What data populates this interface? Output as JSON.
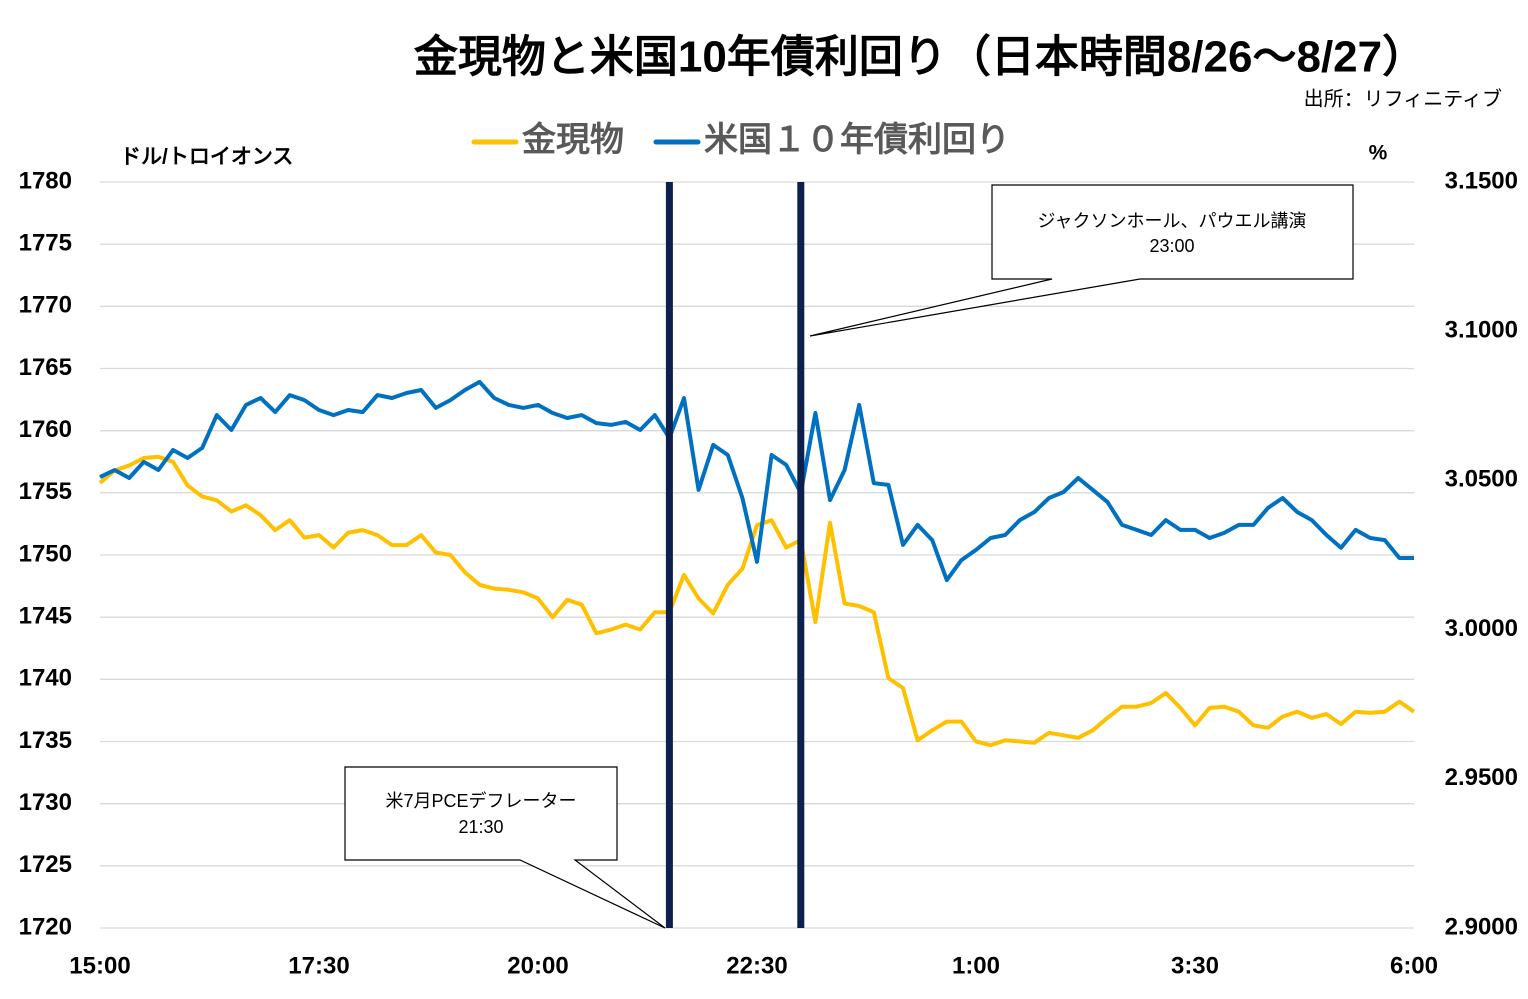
{
  "chart_data": {
    "type": "line",
    "title": "金現物と米国10年債利回り（日本時間8/26～8/27）",
    "source": "出所：リフィニティブ",
    "ylabel": "ドル/トロイオンス",
    "y2label": "%",
    "x": [
      "15:00",
      "15:10",
      "15:20",
      "15:30",
      "15:40",
      "15:50",
      "16:00",
      "16:10",
      "16:20",
      "16:30",
      "16:40",
      "16:50",
      "17:00",
      "17:10",
      "17:20",
      "17:30",
      "17:40",
      "17:50",
      "18:00",
      "18:10",
      "18:20",
      "18:30",
      "18:40",
      "18:50",
      "19:00",
      "19:10",
      "19:20",
      "19:30",
      "19:40",
      "19:50",
      "20:00",
      "20:10",
      "20:20",
      "20:30",
      "20:40",
      "20:50",
      "21:00",
      "21:10",
      "21:20",
      "21:30",
      "21:40",
      "21:50",
      "22:00",
      "22:10",
      "22:20",
      "22:30",
      "22:40",
      "22:50",
      "23:00",
      "23:10",
      "23:20",
      "23:30",
      "23:40",
      "23:50",
      "0:00",
      "0:10",
      "0:20",
      "0:30",
      "0:40",
      "0:50",
      "1:00",
      "1:10",
      "1:20",
      "1:30",
      "1:40",
      "1:50",
      "2:00",
      "2:10",
      "2:20",
      "2:30",
      "2:40",
      "2:50",
      "3:00",
      "3:10",
      "3:20",
      "3:30",
      "3:40",
      "3:50",
      "4:00",
      "4:10",
      "4:20",
      "4:30",
      "4:40",
      "4:50",
      "5:00",
      "5:10",
      "5:20",
      "5:30",
      "5:40",
      "5:50",
      "6:00"
    ],
    "xlim": [
      "15:00",
      "6:00"
    ],
    "xticks": [
      "15:00",
      "17:30",
      "20:00",
      "22:30",
      "1:00",
      "3:30",
      "6:00"
    ],
    "ylim": [
      1720,
      1780
    ],
    "yticks": [
      1720,
      1725,
      1730,
      1735,
      1740,
      1745,
      1750,
      1755,
      1760,
      1765,
      1770,
      1775,
      1780
    ],
    "y2lim": [
      2.9,
      3.15
    ],
    "y2ticks": [
      {
        "value": 2.9,
        "label": "2.9000"
      },
      {
        "value": 2.95,
        "label": "2.9500"
      },
      {
        "value": 3.0,
        "label": "3.0000"
      },
      {
        "value": 3.05,
        "label": "3.0500"
      },
      {
        "value": 3.1,
        "label": "3.1000"
      },
      {
        "value": 3.15,
        "label": "3.1500"
      }
    ],
    "grid": true,
    "series": [
      {
        "name": "金現物",
        "color": "#ffc000",
        "values": [
          1755.8,
          1756.8,
          1757.2,
          1757.8,
          1757.9,
          1757.5,
          1755.6,
          1754.7,
          1754.4,
          1753.5,
          1754.0,
          1753.2,
          1752.0,
          1752.8,
          1751.4,
          1751.6,
          1750.6,
          1751.8,
          1752.0,
          1751.6,
          1750.8,
          1750.8,
          1751.6,
          1750.2,
          1750.0,
          1748.6,
          1747.6,
          1747.3,
          1747.2,
          1747.0,
          1746.5,
          1745.0,
          1746.4,
          1746.0,
          1743.7,
          1744.0,
          1744.4,
          1744.0,
          1745.4,
          1745.4,
          1748.4,
          1746.5,
          1745.3,
          1747.6,
          1748.9,
          1752.4,
          1752.8,
          1750.6,
          1751.2,
          1744.6,
          1752.6,
          1746.1,
          1745.9,
          1745.4,
          1740.1,
          1739.3,
          1735.1,
          1735.9,
          1736.6,
          1736.6,
          1735.0,
          1734.7,
          1735.1,
          1735.0,
          1734.9,
          1735.7,
          1735.5,
          1735.3,
          1735.9,
          1736.9,
          1737.8,
          1737.8,
          1738.1,
          1738.9,
          1737.7,
          1736.3,
          1737.7,
          1737.8,
          1737.4,
          1736.3,
          1736.1,
          1737.0,
          1737.4,
          1736.9,
          1737.2,
          1736.4,
          1737.4,
          1737.3,
          1737.4,
          1738.2,
          1737.4
        ]
      },
      {
        "name": "米国１０年債利回り",
        "color": "#0070c0",
        "axis": "y2",
        "values": [
          3.0511,
          3.0535,
          3.0508,
          3.0562,
          3.0535,
          3.0602,
          3.0575,
          3.0609,
          3.0719,
          3.0669,
          3.0753,
          3.0776,
          3.0729,
          3.0786,
          3.0769,
          3.0736,
          3.0719,
          3.0736,
          3.0729,
          3.0786,
          3.0776,
          3.0793,
          3.0803,
          3.0743,
          3.0769,
          3.0803,
          3.083,
          3.0776,
          3.0753,
          3.0743,
          3.0753,
          3.0726,
          3.0709,
          3.0719,
          3.0692,
          3.0686,
          3.0696,
          3.0669,
          3.0719,
          3.0642,
          3.0776,
          3.0468,
          3.0619,
          3.0585,
          3.0441,
          3.0227,
          3.0585,
          3.0552,
          3.0458,
          3.0726,
          3.0434,
          3.0535,
          3.0753,
          3.0491,
          3.0485,
          3.0284,
          3.0351,
          3.03,
          3.0166,
          3.0233,
          3.0267,
          3.0307,
          3.0317,
          3.0367,
          3.0394,
          3.0441,
          3.0461,
          3.0508,
          3.0468,
          3.0428,
          3.0351,
          3.0334,
          3.0317,
          3.0367,
          3.0334,
          3.0334,
          3.0307,
          3.0324,
          3.0351,
          3.0351,
          3.0408,
          3.0441,
          3.0394,
          3.0367,
          3.0317,
          3.0274,
          3.0334,
          3.0307,
          3.03,
          3.024,
          3.024
        ]
      }
    ],
    "annotations": [
      {
        "x": "21:30",
        "text": "米7月PCEデフレーター",
        "color": "#0d1f4f"
      },
      {
        "x": "23:00",
        "text": "ジャクソンホール、パウエル講演",
        "color": "#0d1f4f"
      }
    ]
  }
}
